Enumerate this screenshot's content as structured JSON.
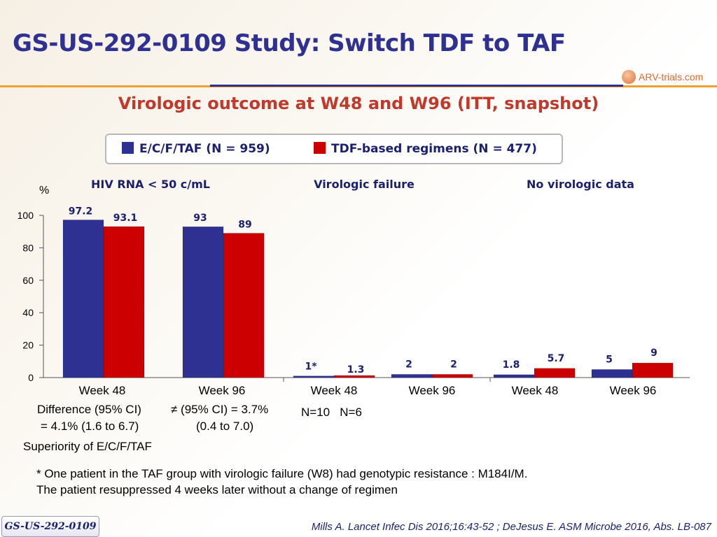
{
  "header": {
    "title": "GS-US-292-0109 Study: Switch TDF to TAF",
    "logo_text": "ARV-trials.com"
  },
  "subtitle": "Virologic outcome at W48 and W96 (ITT, snapshot)",
  "legend": {
    "items": [
      {
        "label": "E/C/F/TAF (N = 959)",
        "color": "#2e3192"
      },
      {
        "label": "TDF-based regimens (N = 477)",
        "color": "#cc0000"
      }
    ]
  },
  "group_headers": [
    "HIV RNA < 50 c/mL",
    "Virologic failure",
    "No virologic data"
  ],
  "notes": {
    "diff1_line1": "Difference (95% CI)",
    "diff1_line2": "= 4.1% (1.6 to 6.7)",
    "diff2_line1": "≠ (95% CI) = 3.7%",
    "diff2_line2": "(0.4 to 7.0)",
    "superiority": "Superiority of E/C/F/TAF",
    "n_counts": "N=10   N=6"
  },
  "footnote": {
    "line1": "* One patient in the TAF group with virologic failure (W8) had genotypic resistance : M184I/M.",
    "line2": "The patient resuppressed 4 weeks later without a change of regimen"
  },
  "footer": {
    "badge": "GS-US-292-0109",
    "citation": "Mills A. Lancet Infec Dis 2016;16:43-52 ; DeJesus E. ASM Microbe 2016, Abs. LB-087"
  },
  "chart_data": {
    "type": "bar",
    "ylabel": "%",
    "ylim": [
      0,
      100
    ],
    "yticks": [
      0,
      20,
      40,
      60,
      80,
      100
    ],
    "categories": [
      "Week 48",
      "Week 96",
      "Week 48",
      "Week 96",
      "Week 48",
      "Week 96"
    ],
    "groups": [
      "HIV RNA < 50 c/mL",
      "Virologic failure",
      "No virologic data"
    ],
    "series": [
      {
        "name": "E/C/F/TAF (N = 959)",
        "color": "#2e3192",
        "values": [
          97.2,
          93,
          1,
          2,
          1.8,
          5
        ],
        "labels": [
          "97.2",
          "93",
          "1*",
          "2",
          "1.8",
          "5"
        ]
      },
      {
        "name": "TDF-based regimens (N = 477)",
        "color": "#cc0000",
        "values": [
          93.1,
          89,
          1.3,
          2,
          5.7,
          9
        ],
        "labels": [
          "93.1",
          "89",
          "1.3",
          "2",
          "5.7",
          "9"
        ]
      }
    ],
    "grid": false,
    "legend": "top"
  }
}
